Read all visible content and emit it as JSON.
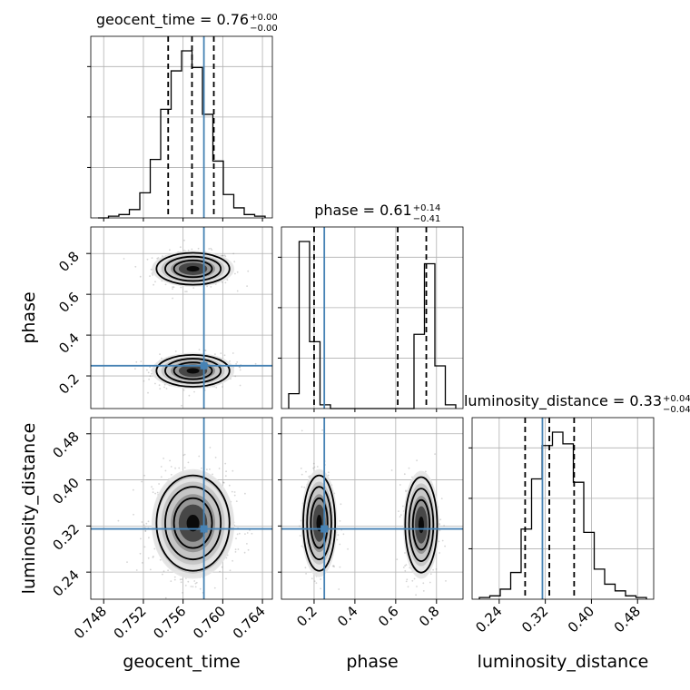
{
  "chart_data": {
    "type": "corner",
    "parameters": [
      "geocent_time",
      "phase",
      "luminosity_distance"
    ],
    "titles": [
      {
        "name": "geocent_time",
        "median": "0.76",
        "plus": "+0.00",
        "minus": "−0.00"
      },
      {
        "name": "phase",
        "median": "0.61",
        "plus": "+0.14",
        "minus": "−0.41"
      },
      {
        "name": "luminosity_distance",
        "median": "0.33",
        "plus": "+0.04",
        "minus": "−0.04"
      }
    ],
    "axis_ranges": {
      "geocent_time": [
        0.7467,
        0.765
      ],
      "phase": [
        0.04,
        0.93
      ],
      "luminosity_distance": [
        0.193,
        0.508
      ]
    },
    "ticks": {
      "geocent_time": [
        "0.748",
        "0.752",
        "0.756",
        "0.760",
        "0.764"
      ],
      "phase": [
        "0.2",
        "0.4",
        "0.6",
        "0.8"
      ],
      "luminosity_distance": [
        "0.24",
        "0.32",
        "0.40",
        "0.48"
      ]
    },
    "truths": {
      "geocent_time": 0.7581,
      "phase": 0.25,
      "luminosity_distance": 0.315
    },
    "quantiles": {
      "geocent_time": [
        0.7545,
        0.7569,
        0.7591
      ],
      "phase": [
        0.2,
        0.61,
        0.75
      ],
      "luminosity_distance": [
        0.285,
        0.327,
        0.37
      ]
    },
    "histograms": {
      "geocent_time": [
        0,
        1,
        2,
        5,
        15,
        35,
        65,
        88,
        100,
        90,
        62,
        34,
        14,
        6,
        2,
        1
      ],
      "phase": [
        8,
        90,
        36,
        2,
        0,
        0,
        0,
        0,
        0,
        0,
        0,
        0,
        40,
        78,
        23,
        2
      ],
      "luminosity_distance": [
        1,
        2,
        6,
        16,
        42,
        72,
        92,
        100,
        93,
        70,
        40,
        18,
        9,
        5,
        2,
        1
      ]
    },
    "modes": [
      {
        "geocent_time": 0.757,
        "phase": 0.725,
        "luminosity_distance": 0.322,
        "spread": [
          0.0016,
          0.034,
          0.036
        ]
      },
      {
        "geocent_time": 0.757,
        "phase": 0.225,
        "luminosity_distance": 0.325,
        "spread": [
          0.0016,
          0.034,
          0.036
        ]
      }
    ],
    "truth_color": "#4682b4",
    "grid": true
  }
}
